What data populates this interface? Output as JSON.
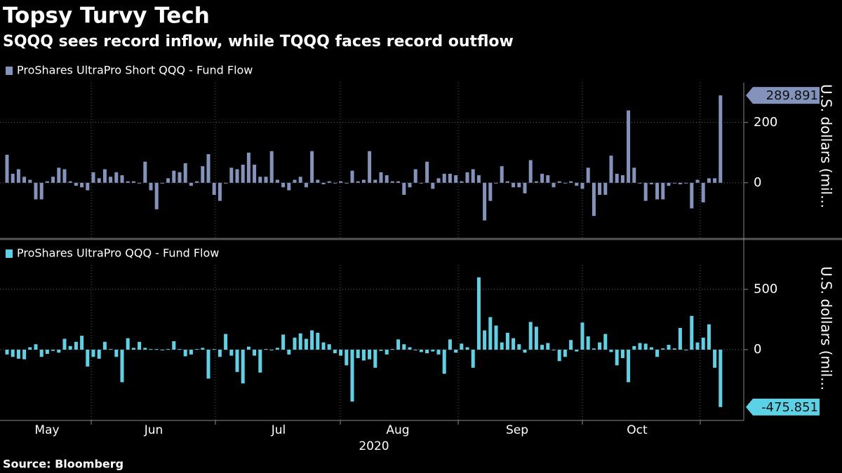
{
  "title": "Topsy Turvy Tech",
  "subtitle": "SQQQ sees record inflow, while TQQQ faces record outflow",
  "source": "Source: Bloomberg",
  "x_axis": {
    "labels": [
      "May",
      "Jun",
      "Jul",
      "Aug",
      "Sep",
      "Oct"
    ],
    "year": "2020"
  },
  "chart_data": [
    {
      "type": "bar",
      "y_label": "U.S. dollars (mil...",
      "ylim": [
        -184,
        332
      ],
      "yticks": [
        0,
        200
      ],
      "grid": true,
      "series": [
        {
          "name": "ProShares UltraPro Short QQQ - Fund Flow",
          "color": "#8393bb",
          "values": [
            93,
            30,
            45,
            20,
            10,
            -55,
            -55,
            5,
            20,
            50,
            45,
            5,
            -10,
            -15,
            -25,
            35,
            15,
            45,
            20,
            35,
            25,
            5,
            5,
            0,
            70,
            -25,
            -88,
            0,
            15,
            40,
            35,
            65,
            -10,
            5,
            55,
            95,
            -40,
            -60,
            0,
            50,
            45,
            60,
            100,
            60,
            20,
            20,
            105,
            10,
            -15,
            -25,
            10,
            20,
            -15,
            105,
            10,
            -5,
            5,
            0,
            5,
            0,
            40,
            5,
            10,
            105,
            10,
            35,
            25,
            5,
            5,
            -40,
            -15,
            45,
            0,
            70,
            -20,
            15,
            30,
            30,
            25,
            5,
            35,
            45,
            25,
            -125,
            -60,
            0,
            55,
            5,
            -15,
            -15,
            -35,
            75,
            5,
            30,
            25,
            -15,
            5,
            0,
            5,
            -10,
            -20,
            50,
            -110,
            -40,
            -40,
            90,
            30,
            25,
            240,
            50,
            0,
            -60,
            -5,
            -55,
            -55,
            -10,
            0,
            -5,
            0,
            -85,
            10,
            -65,
            15,
            15,
            289.891
          ]
        }
      ]
    },
    {
      "type": "bar",
      "y_label": "U.S. dollars (mil...",
      "ylim": [
        -587,
        703
      ],
      "yticks": [
        0,
        500
      ],
      "grid": true,
      "series": [
        {
          "name": "ProShares UltraPro QQQ - Fund Flow",
          "color": "#5cd2e6",
          "values": [
            -40,
            -60,
            -75,
            -80,
            20,
            45,
            -60,
            -35,
            -10,
            -25,
            90,
            30,
            65,
            115,
            -140,
            -60,
            -75,
            65,
            5,
            -60,
            -270,
            95,
            15,
            65,
            15,
            5,
            5,
            0,
            5,
            70,
            5,
            -55,
            -40,
            5,
            15,
            -240,
            5,
            -60,
            130,
            -50,
            -185,
            -280,
            25,
            -50,
            -190,
            5,
            0,
            15,
            125,
            -40,
            100,
            135,
            90,
            160,
            140,
            60,
            45,
            -30,
            -50,
            -130,
            -430,
            -70,
            -90,
            -80,
            -150,
            -10,
            -40,
            5,
            85,
            45,
            20,
            0,
            -20,
            -30,
            -15,
            -40,
            -200,
            85,
            -25,
            50,
            20,
            -150,
            600,
            160,
            270,
            200,
            60,
            140,
            95,
            45,
            -25,
            230,
            190,
            40,
            55,
            0,
            -95,
            -60,
            80,
            -15,
            225,
            110,
            10,
            60,
            130,
            -20,
            -130,
            -70,
            -270,
            30,
            55,
            50,
            20,
            -60,
            10,
            40,
            10,
            180,
            0,
            280,
            60,
            100,
            210,
            -150,
            -475.851
          ]
        }
      ]
    }
  ]
}
